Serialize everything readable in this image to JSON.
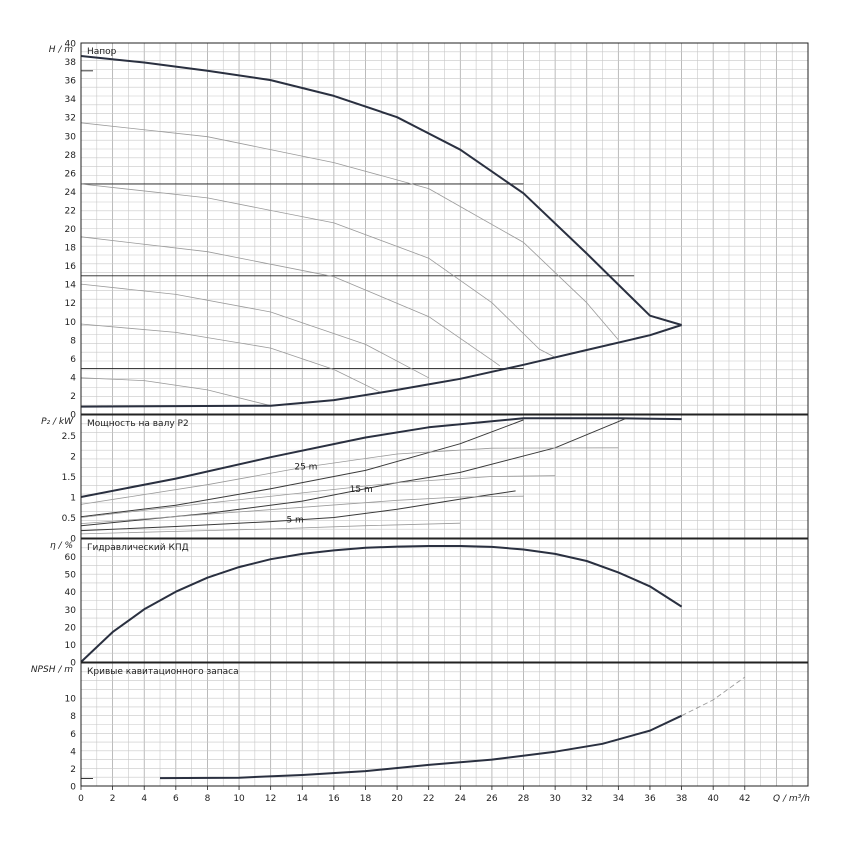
{
  "chart_data": [
    {
      "type": "line",
      "panel_title": "Напор",
      "ylabel": "H / m",
      "ylim": [
        0,
        40
      ],
      "yticks": [
        0,
        2,
        4,
        6,
        8,
        10,
        12,
        14,
        16,
        18,
        20,
        22,
        24,
        26,
        28,
        30,
        32,
        34,
        36,
        38,
        40
      ],
      "series": [
        {
          "style": "main",
          "points": [
            [
              0,
              38.6
            ],
            [
              4,
              37.9
            ],
            [
              8,
              37.0
            ],
            [
              12,
              36.0
            ],
            [
              16,
              34.3
            ],
            [
              20,
              32.0
            ],
            [
              24,
              28.5
            ],
            [
              28,
              23.8
            ],
            [
              32,
              17.3
            ],
            [
              36,
              10.6
            ],
            [
              38,
              9.6
            ]
          ]
        },
        {
          "style": "thin",
          "points": [
            [
              0,
              31.4
            ],
            [
              8,
              29.9
            ],
            [
              16,
              27.1
            ],
            [
              22,
              24.3
            ],
            [
              28,
              18.5
            ],
            [
              32,
              12.0
            ],
            [
              34,
              8.0
            ]
          ]
        },
        {
          "style": "thin",
          "points": [
            [
              0,
              24.8
            ],
            [
              8,
              23.3
            ],
            [
              16,
              20.6
            ],
            [
              22,
              16.8
            ],
            [
              26,
              12.0
            ],
            [
              29,
              7.0
            ],
            [
              30,
              6.1
            ]
          ]
        },
        {
          "style": "thin",
          "points": [
            [
              0,
              19.1
            ],
            [
              8,
              17.5
            ],
            [
              16,
              14.8
            ],
            [
              22,
              10.5
            ],
            [
              26,
              5.8
            ],
            [
              26.5,
              5.2
            ]
          ]
        },
        {
          "style": "thin",
          "points": [
            [
              0,
              14.0
            ],
            [
              6,
              12.9
            ],
            [
              12,
              11.0
            ],
            [
              18,
              7.5
            ],
            [
              22,
              3.9
            ]
          ]
        },
        {
          "style": "thin",
          "points": [
            [
              0,
              9.7
            ],
            [
              6,
              8.8
            ],
            [
              12,
              7.1
            ],
            [
              16,
              4.8
            ],
            [
              19,
              2.3
            ]
          ]
        },
        {
          "style": "thin",
          "points": [
            [
              0,
              3.9
            ],
            [
              4,
              3.6
            ],
            [
              8,
              2.6
            ],
            [
              12,
              0.9
            ]
          ]
        },
        {
          "style": "main",
          "points": [
            [
              0,
              0.8
            ],
            [
              12,
              0.9
            ],
            [
              16,
              1.5
            ],
            [
              20,
              2.6
            ],
            [
              24,
              3.8
            ],
            [
              28,
              5.3
            ],
            [
              32,
              6.9
            ],
            [
              36,
              8.5
            ],
            [
              38,
              9.6
            ]
          ]
        }
      ],
      "hlines": [
        {
          "y": 37.0,
          "x_end": 0
        },
        {
          "y": 24.8,
          "x_end": 28
        },
        {
          "y": 14.9,
          "x_end": 35
        },
        {
          "y": 4.9,
          "x_end": 28
        }
      ]
    },
    {
      "type": "line",
      "panel_title": "Мощность на валу P2",
      "ylabel": "P₂ / kW",
      "ylim": [
        0,
        3
      ],
      "yticks": [
        0,
        0.5,
        1,
        1.5,
        2,
        2.5
      ],
      "ytick_labels": [
        "0",
        "0.5",
        "1",
        "1.5",
        "2",
        "2.5"
      ],
      "series": [
        {
          "style": "main",
          "points": [
            [
              0,
              1.0
            ],
            [
              6,
              1.45
            ],
            [
              12,
              1.97
            ],
            [
              18,
              2.45
            ],
            [
              22,
              2.7
            ],
            [
              28,
              2.92
            ],
            [
              34,
              2.92
            ],
            [
              38,
              2.9
            ]
          ]
        },
        {
          "style": "mid",
          "points": [
            [
              0,
              0.52
            ],
            [
              6,
              0.8
            ],
            [
              12,
              1.2
            ],
            [
              18,
              1.65
            ],
            [
              24,
              2.3
            ],
            [
              28,
              2.88
            ]
          ]
        },
        {
          "style": "mid",
          "points": [
            [
              0,
              0.3
            ],
            [
              8,
              0.6
            ],
            [
              14,
              0.9
            ],
            [
              20,
              1.35
            ],
            [
              24,
              1.6
            ],
            [
              30,
              2.2
            ],
            [
              34.5,
              2.92
            ]
          ]
        },
        {
          "style": "mid",
          "points": [
            [
              0,
              0.18
            ],
            [
              6,
              0.28
            ],
            [
              12,
              0.4
            ],
            [
              16,
              0.5
            ],
            [
              20,
              0.7
            ],
            [
              24,
              0.95
            ],
            [
              27.5,
              1.15
            ]
          ]
        },
        {
          "style": "thin",
          "points": [
            [
              0,
              0.82
            ],
            [
              8,
              1.3
            ],
            [
              14,
              1.72
            ],
            [
              20,
              2.05
            ],
            [
              26,
              2.19
            ],
            [
              34,
              2.2
            ]
          ]
        },
        {
          "style": "thin",
          "points": [
            [
              0,
              0.5
            ],
            [
              8,
              0.85
            ],
            [
              14,
              1.1
            ],
            [
              20,
              1.35
            ],
            [
              26,
              1.5
            ],
            [
              30,
              1.52
            ]
          ]
        },
        {
          "style": "thin",
          "points": [
            [
              0,
              0.35
            ],
            [
              8,
              0.58
            ],
            [
              14,
              0.75
            ],
            [
              20,
              0.92
            ],
            [
              24,
              1.0
            ],
            [
              28,
              1.02
            ]
          ]
        },
        {
          "style": "thin",
          "points": [
            [
              0,
              0.1
            ],
            [
              6,
              0.16
            ],
            [
              12,
              0.22
            ],
            [
              18,
              0.3
            ],
            [
              24,
              0.36
            ]
          ]
        }
      ],
      "labels": [
        {
          "text": "25 m",
          "x": 13.5,
          "y": 1.75
        },
        {
          "text": "15 m",
          "x": 17,
          "y": 1.2
        },
        {
          "text": "5 m",
          "x": 13,
          "y": 0.45
        }
      ]
    },
    {
      "type": "line",
      "panel_title": "Гидравлический КПД",
      "ylabel": "η / %",
      "ylim": [
        0,
        70
      ],
      "yticks": [
        0,
        10,
        20,
        30,
        40,
        50,
        60
      ],
      "series": [
        {
          "style": "main",
          "points": [
            [
              0,
              0
            ],
            [
              2,
              17
            ],
            [
              4,
              30
            ],
            [
              6,
              40
            ],
            [
              8,
              48
            ],
            [
              10,
              54
            ],
            [
              12,
              58.5
            ],
            [
              14,
              61.5
            ],
            [
              16,
              63.5
            ],
            [
              18,
              65
            ],
            [
              20,
              65.7
            ],
            [
              22,
              66
            ],
            [
              24,
              66
            ],
            [
              26,
              65.5
            ],
            [
              28,
              64
            ],
            [
              30,
              61.5
            ],
            [
              32,
              57.5
            ],
            [
              34,
              51
            ],
            [
              36,
              43
            ],
            [
              38,
              31.5
            ]
          ]
        }
      ]
    },
    {
      "type": "line",
      "panel_title": "Кривые кавитационного запаса",
      "ylabel": "NPSH / m",
      "xlabel": "Q / m³/h",
      "ylim": [
        0,
        14
      ],
      "yticks": [
        0,
        2,
        4,
        6,
        8,
        10
      ],
      "xlim": [
        0,
        46
      ],
      "xticks": [
        0,
        2,
        4,
        6,
        8,
        10,
        12,
        14,
        16,
        18,
        20,
        22,
        24,
        26,
        28,
        30,
        32,
        34,
        36,
        38,
        40,
        42
      ],
      "series": [
        {
          "style": "main",
          "points": [
            [
              5,
              0.9
            ],
            [
              10,
              0.95
            ],
            [
              14,
              1.25
            ],
            [
              18,
              1.7
            ],
            [
              22,
              2.4
            ],
            [
              26,
              3.0
            ],
            [
              30,
              3.9
            ],
            [
              33,
              4.8
            ],
            [
              36,
              6.3
            ],
            [
              38,
              8.0
            ]
          ]
        },
        {
          "style": "dash",
          "points": [
            [
              38,
              8.0
            ],
            [
              40,
              9.8
            ],
            [
              42,
              12.4
            ]
          ]
        }
      ],
      "hlines": [
        {
          "y": 0.85,
          "x_end": 0
        }
      ]
    }
  ]
}
